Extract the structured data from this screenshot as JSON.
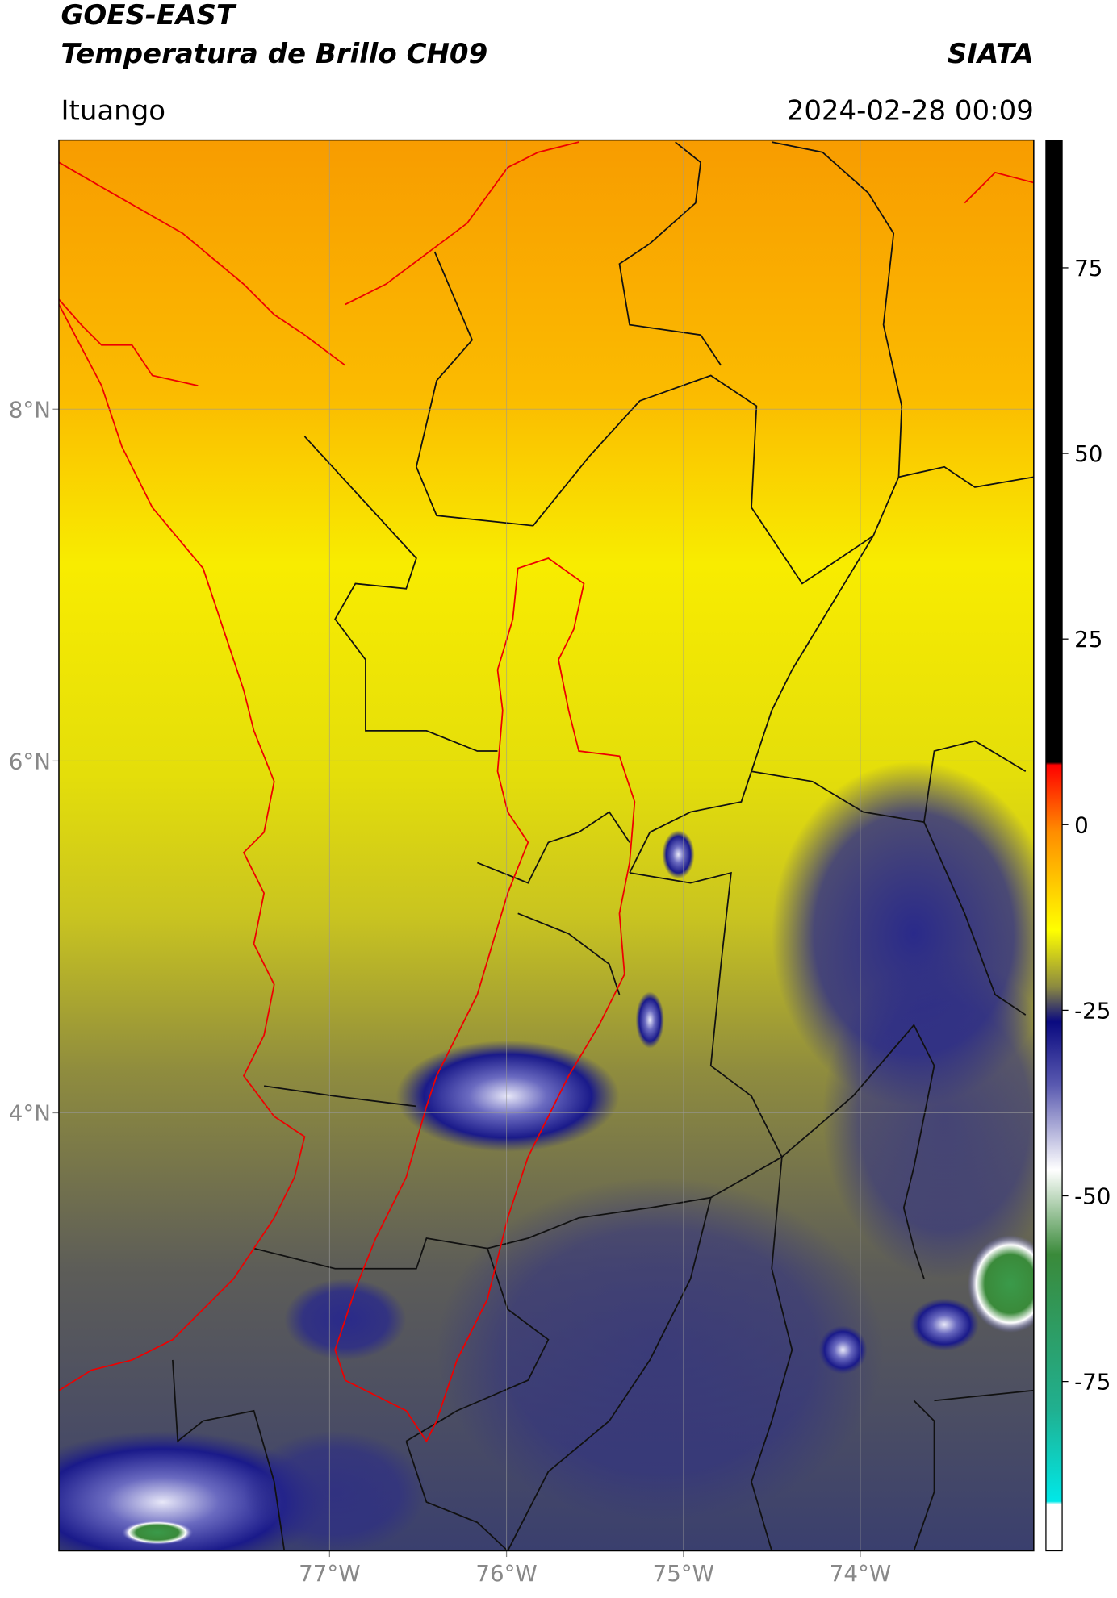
{
  "header": {
    "title_line1": "GOES-EAST",
    "title_line2": "Temperatura de Brillo CH09",
    "agency": "SIATA",
    "region": "Ituango",
    "timestamp": "2024-02-28 00:09"
  },
  "map": {
    "xlim": [
      -78.53,
      -73.02
    ],
    "ylim": [
      1.51,
      9.53
    ],
    "xticks": [
      {
        "value": -77,
        "label": "77°W"
      },
      {
        "value": -76,
        "label": "76°W"
      },
      {
        "value": -75,
        "label": "75°W"
      },
      {
        "value": -74,
        "label": "74°W"
      }
    ],
    "yticks": [
      {
        "value": 8,
        "label": "8°N"
      },
      {
        "value": 6,
        "label": "6°N"
      },
      {
        "value": 4,
        "label": "4°N"
      }
    ]
  },
  "colorbar": {
    "lim": [
      -97.8,
      92.2
    ],
    "ticks": [
      75,
      50,
      25,
      0,
      -25,
      -50,
      -75
    ]
  }
}
